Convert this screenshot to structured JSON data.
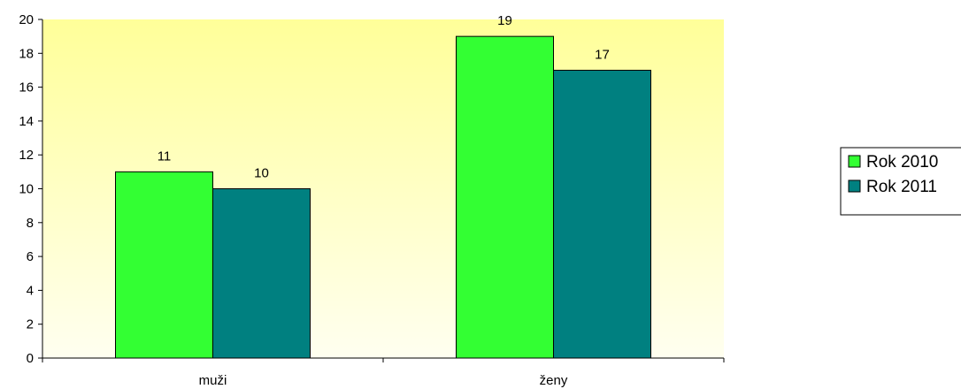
{
  "chart_data": {
    "type": "bar",
    "categories": [
      "muži",
      "ženy"
    ],
    "series": [
      {
        "name": "Rok 2010",
        "values": [
          11,
          19
        ],
        "color": "#33ff33"
      },
      {
        "name": "Rok 2011",
        "values": [
          10,
          17
        ],
        "color": "#008080"
      }
    ],
    "ylim": [
      0,
      20
    ],
    "yticks": [
      "0",
      "2",
      "4",
      "6",
      "8",
      "10",
      "12",
      "14",
      "16",
      "18",
      "20"
    ],
    "grid": false,
    "legend_position": "right",
    "plot_background": {
      "top": "#ffff99",
      "bottom": "#fffff0"
    }
  }
}
